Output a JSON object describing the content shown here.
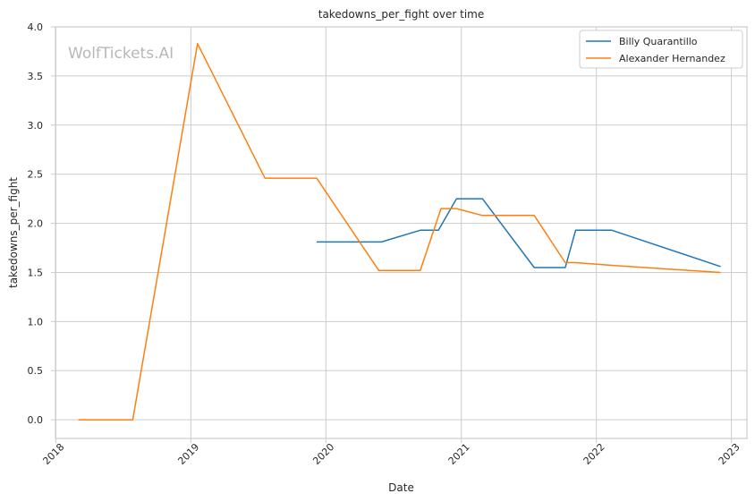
{
  "chart_data": {
    "type": "line",
    "title": "takedowns_per_fight over time",
    "xlabel": "Date",
    "ylabel": "takedowns_per_fight",
    "watermark": "WolfTickets.AI",
    "xlim": [
      "2017-12-31",
      "2023-02-12"
    ],
    "ylim": [
      -0.19,
      4.0
    ],
    "x_ticks": [
      "2018-01-01",
      "2019-01-01",
      "2020-01-01",
      "2021-01-01",
      "2022-01-01",
      "2023-01-01"
    ],
    "x_tick_labels": [
      "2018",
      "2019",
      "2020",
      "2021",
      "2022",
      "2023"
    ],
    "y_ticks": [
      0.0,
      0.5,
      1.0,
      1.5,
      2.0,
      2.5,
      3.0,
      3.5,
      4.0
    ],
    "y_tick_labels": [
      "0.0",
      "0.5",
      "1.0",
      "1.5",
      "2.0",
      "2.5",
      "3.0",
      "3.5",
      "4.0"
    ],
    "grid": true,
    "legend_position": "top-right",
    "series": [
      {
        "name": "Billy Quarantillo",
        "color": "#1f77b4",
        "points": [
          [
            "2019-12-07",
            1.81
          ],
          [
            "2020-05-30",
            1.81
          ],
          [
            "2020-09-12",
            1.93
          ],
          [
            "2020-10-31",
            1.93
          ],
          [
            "2020-12-19",
            2.25
          ],
          [
            "2021-02-27",
            2.25
          ],
          [
            "2021-07-17",
            1.55
          ],
          [
            "2021-10-09",
            1.55
          ],
          [
            "2021-11-06",
            1.93
          ],
          [
            "2022-02-12",
            1.93
          ],
          [
            "2022-12-03",
            1.56
          ]
        ]
      },
      {
        "name": "Alexander Hernandez",
        "color": "#ff7f0e",
        "points": [
          [
            "2018-03-03",
            0.0
          ],
          [
            "2018-07-28",
            0.0
          ],
          [
            "2019-01-19",
            3.83
          ],
          [
            "2019-07-20",
            2.46
          ],
          [
            "2019-12-07",
            2.46
          ],
          [
            "2020-05-23",
            1.52
          ],
          [
            "2020-09-12",
            1.52
          ],
          [
            "2020-11-07",
            2.15
          ],
          [
            "2020-12-19",
            2.15
          ],
          [
            "2021-02-27",
            2.08
          ],
          [
            "2021-07-17",
            2.08
          ],
          [
            "2021-10-09",
            1.6
          ],
          [
            "2021-11-06",
            1.6
          ],
          [
            "2022-02-19",
            1.57
          ],
          [
            "2022-12-03",
            1.5
          ]
        ]
      }
    ]
  }
}
